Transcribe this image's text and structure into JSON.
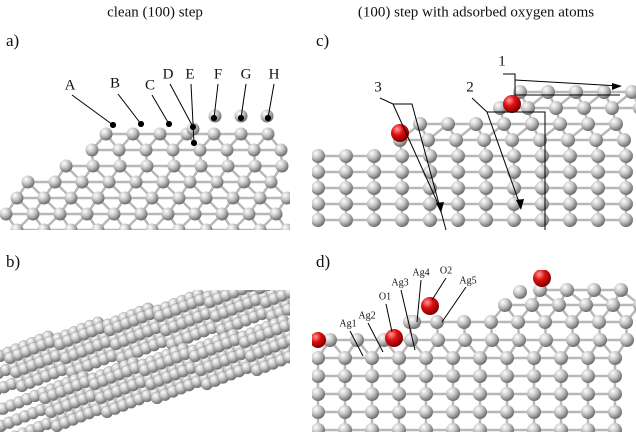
{
  "column_titles": [
    "clean (100) step",
    "(100) step with adsorbed oxygen atoms"
  ],
  "panels": [
    {
      "label": "a)",
      "atom_labels": [
        "A",
        "B",
        "C",
        "D",
        "E",
        "F",
        "G",
        "H"
      ]
    },
    {
      "label": "b)"
    },
    {
      "label": "c)",
      "path_labels": [
        "1",
        "2",
        "3"
      ]
    },
    {
      "label": "d)",
      "atom_labels": [
        "Ag1",
        "Ag2",
        "O1",
        "Ag3",
        "Ag4",
        "O2",
        "Ag5"
      ]
    }
  ]
}
